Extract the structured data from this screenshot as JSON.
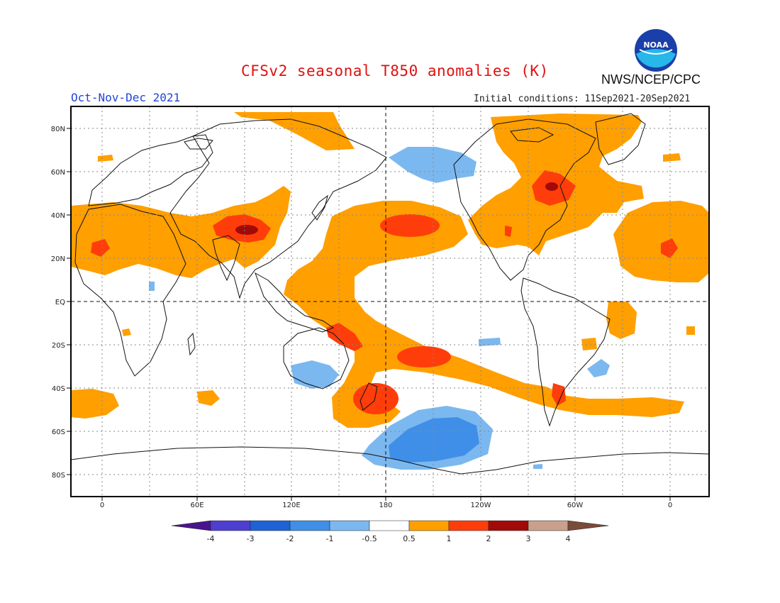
{
  "header": {
    "title": "CFSv2 seasonal T850 anomalies (K)",
    "season": "Oct-Nov-Dec 2021",
    "initial_conditions": "Initial conditions: 11Sep2021-20Sep2021",
    "agency": "NWS/NCEP/CPC",
    "logo_text": "NOAA"
  },
  "map": {
    "lat_labels": [
      "80N",
      "60N",
      "40N",
      "20N",
      "EQ",
      "20S",
      "40S",
      "60S",
      "80S"
    ],
    "lon_labels": [
      "0",
      "60E",
      "120E",
      "180",
      "120W",
      "60W",
      "0"
    ]
  },
  "colorbar": {
    "labels": [
      "-4",
      "-3",
      "-2",
      "-1",
      "-0.5",
      "0.5",
      "1",
      "2",
      "3",
      "4"
    ],
    "colors": {
      "lt_-4": "#4a148c",
      "-4_-3": "#4d3fd0",
      "-3_-2": "#1f62d6",
      "-2_-1": "#3f8fe8",
      "-1_-0.5": "#7bb8ef",
      "-0.5_0.5": "#ffffff",
      "0.5_1": "#ff9f00",
      "1_2": "#ff3d0a",
      "2_3": "#a10a08",
      "3_4": "#c8a08c",
      "gt_4": "#7a4a3a"
    }
  }
}
